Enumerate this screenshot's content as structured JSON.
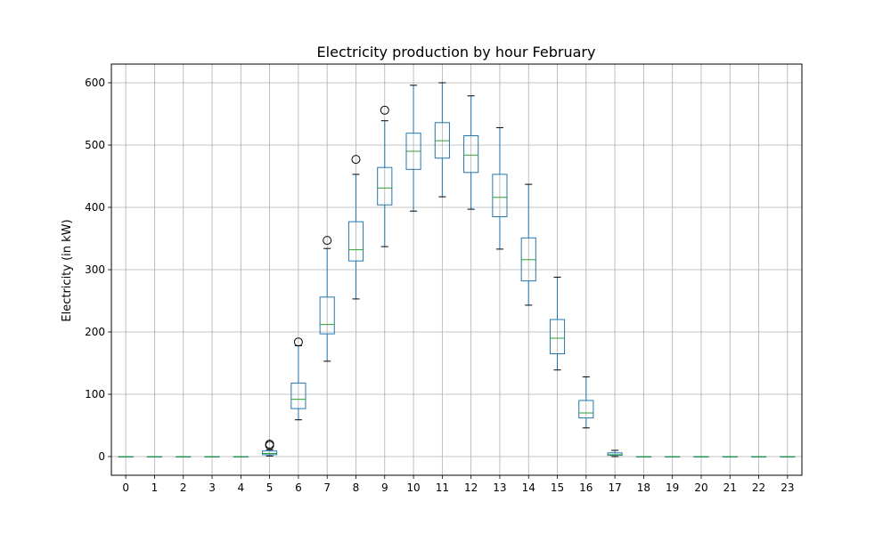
{
  "chart_data": {
    "type": "boxplot",
    "title": "Electricity production by hour February",
    "xlabel": "",
    "ylabel": "Electricity (in kW)",
    "ylim": [
      -30,
      630
    ],
    "yticks": [
      0,
      100,
      200,
      300,
      400,
      500,
      600
    ],
    "grid": true,
    "colors": {
      "box": "#1f77b4",
      "median": "#2ca02c",
      "whisker": "#1f77b4",
      "cap": "#000000",
      "grid": "#b0b0b0"
    },
    "boxes": [
      {
        "x": "0",
        "whislo": 0,
        "q1": 0,
        "med": 0,
        "q3": 0,
        "whishi": 0,
        "fliers": []
      },
      {
        "x": "1",
        "whislo": 0,
        "q1": 0,
        "med": 0,
        "q3": 0,
        "whishi": 0,
        "fliers": []
      },
      {
        "x": "2",
        "whislo": 0,
        "q1": 0,
        "med": 0,
        "q3": 0,
        "whishi": 0,
        "fliers": []
      },
      {
        "x": "3",
        "whislo": 0,
        "q1": 0,
        "med": 0,
        "q3": 0,
        "whishi": 0,
        "fliers": []
      },
      {
        "x": "4",
        "whislo": 0,
        "q1": 0,
        "med": 0,
        "q3": 0,
        "whishi": 0,
        "fliers": []
      },
      {
        "x": "5",
        "whislo": 1,
        "q1": 3,
        "med": 5,
        "q3": 9,
        "whishi": 11,
        "fliers": [
          18,
          20
        ]
      },
      {
        "x": "6",
        "whislo": 59,
        "q1": 77,
        "med": 92,
        "q3": 118,
        "whishi": 178,
        "fliers": [
          184
        ]
      },
      {
        "x": "7",
        "whislo": 153,
        "q1": 197,
        "med": 212,
        "q3": 256,
        "whishi": 334,
        "fliers": [
          347
        ]
      },
      {
        "x": "8",
        "whislo": 253,
        "q1": 314,
        "med": 332,
        "q3": 377,
        "whishi": 453,
        "fliers": [
          477
        ]
      },
      {
        "x": "9",
        "whislo": 337,
        "q1": 404,
        "med": 431,
        "q3": 464,
        "whishi": 539,
        "fliers": [
          556
        ]
      },
      {
        "x": "10",
        "whislo": 394,
        "q1": 461,
        "med": 490,
        "q3": 519,
        "whishi": 596,
        "fliers": []
      },
      {
        "x": "11",
        "whislo": 417,
        "q1": 479,
        "med": 507,
        "q3": 536,
        "whishi": 600,
        "fliers": []
      },
      {
        "x": "12",
        "whislo": 397,
        "q1": 456,
        "med": 484,
        "q3": 515,
        "whishi": 579,
        "fliers": []
      },
      {
        "x": "13",
        "whislo": 333,
        "q1": 385,
        "med": 416,
        "q3": 453,
        "whishi": 528,
        "fliers": []
      },
      {
        "x": "14",
        "whislo": 243,
        "q1": 282,
        "med": 316,
        "q3": 351,
        "whishi": 437,
        "fliers": []
      },
      {
        "x": "15",
        "whislo": 139,
        "q1": 165,
        "med": 190,
        "q3": 220,
        "whishi": 288,
        "fliers": []
      },
      {
        "x": "16",
        "whislo": 46,
        "q1": 62,
        "med": 70,
        "q3": 90,
        "whishi": 128,
        "fliers": []
      },
      {
        "x": "17",
        "whislo": 0,
        "q1": 2,
        "med": 3,
        "q3": 6,
        "whishi": 10,
        "fliers": []
      },
      {
        "x": "18",
        "whislo": 0,
        "q1": 0,
        "med": 0,
        "q3": 0,
        "whishi": 0,
        "fliers": []
      },
      {
        "x": "19",
        "whislo": 0,
        "q1": 0,
        "med": 0,
        "q3": 0,
        "whishi": 0,
        "fliers": []
      },
      {
        "x": "20",
        "whislo": 0,
        "q1": 0,
        "med": 0,
        "q3": 0,
        "whishi": 0,
        "fliers": []
      },
      {
        "x": "21",
        "whislo": 0,
        "q1": 0,
        "med": 0,
        "q3": 0,
        "whishi": 0,
        "fliers": []
      },
      {
        "x": "22",
        "whislo": 0,
        "q1": 0,
        "med": 0,
        "q3": 0,
        "whishi": 0,
        "fliers": []
      },
      {
        "x": "23",
        "whislo": 0,
        "q1": 0,
        "med": 0,
        "q3": 0,
        "whishi": 0,
        "fliers": []
      }
    ]
  }
}
